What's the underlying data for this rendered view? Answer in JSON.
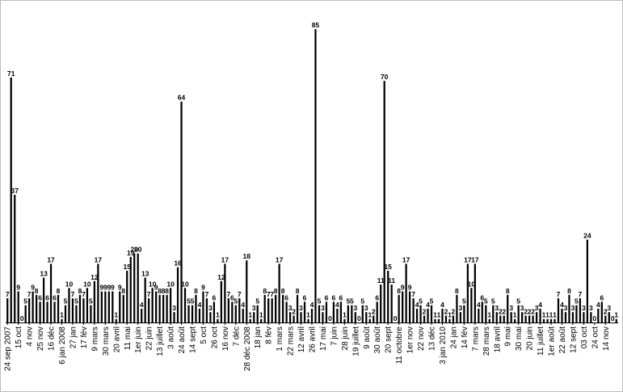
{
  "chart_data": {
    "type": "bar",
    "title": "",
    "xlabel": "",
    "ylabel": "",
    "ylim": [
      0,
      89
    ],
    "grid": false,
    "bar_color": "#000000",
    "values": [
      7,
      71,
      37,
      9,
      0,
      5,
      7,
      9,
      8,
      6,
      13,
      6,
      17,
      6,
      8,
      1,
      5,
      10,
      7,
      5,
      8,
      7,
      10,
      5,
      12,
      17,
      9,
      9,
      9,
      9,
      1,
      9,
      8,
      15,
      19,
      20,
      20,
      4,
      13,
      7,
      10,
      9,
      8,
      8,
      8,
      10,
      3,
      16,
      64,
      10,
      5,
      5,
      8,
      4,
      9,
      7,
      3,
      6,
      1,
      12,
      17,
      7,
      6,
      5,
      7,
      4,
      18,
      1,
      3,
      5,
      1,
      8,
      7,
      7,
      8,
      17,
      8,
      6,
      3,
      2,
      8,
      3,
      6,
      1,
      4,
      85,
      5,
      3,
      6,
      0,
      6,
      4,
      6,
      1,
      5,
      5,
      3,
      0,
      5,
      3,
      1,
      2,
      6,
      11,
      70,
      15,
      11,
      0,
      8,
      9,
      17,
      9,
      7,
      4,
      5,
      2,
      4,
      5,
      1,
      1,
      4,
      2,
      1,
      2,
      8,
      3,
      5,
      17,
      10,
      17,
      4,
      6,
      5,
      1,
      5,
      3,
      2,
      2,
      8,
      3,
      1,
      5,
      3,
      2,
      2,
      2,
      3,
      4,
      1,
      1,
      1,
      1,
      7,
      4,
      3,
      8,
      3,
      5,
      7,
      3,
      24,
      3,
      0,
      4,
      6,
      2,
      3,
      0,
      1
    ],
    "tick_labels": [
      {
        "label": "24 sep 2007",
        "i": 0
      },
      {
        "label": "15 oct",
        "i": 3
      },
      {
        "label": "4 nov",
        "i": 6
      },
      {
        "label": "25 nov",
        "i": 9
      },
      {
        "label": "16 déc",
        "i": 12
      },
      {
        "label": "6 jan 2008",
        "i": 15
      },
      {
        "label": "27 jan",
        "i": 18
      },
      {
        "label": "17 fév",
        "i": 21
      },
      {
        "label": "9 mars",
        "i": 24
      },
      {
        "label": "30 mars",
        "i": 27
      },
      {
        "label": "20 avril",
        "i": 30
      },
      {
        "label": "11 mai",
        "i": 33
      },
      {
        "label": "1er juin",
        "i": 36
      },
      {
        "label": "22 juin",
        "i": 39
      },
      {
        "label": "13 juillet",
        "i": 42
      },
      {
        "label": "3 août",
        "i": 45
      },
      {
        "label": "24 août",
        "i": 48
      },
      {
        "label": "14 sept",
        "i": 51
      },
      {
        "label": "5 oct",
        "i": 54
      },
      {
        "label": "26 oct",
        "i": 57
      },
      {
        "label": "16 nov",
        "i": 60
      },
      {
        "label": "7 déc",
        "i": 63
      },
      {
        "label": "28 déc 2008",
        "i": 66
      },
      {
        "label": "18 jan",
        "i": 69
      },
      {
        "label": "8 fév",
        "i": 72
      },
      {
        "label": "1 mars",
        "i": 75
      },
      {
        "label": "22 mars",
        "i": 78
      },
      {
        "label": "12 avril",
        "i": 81
      },
      {
        "label": "26 avril",
        "i": 84
      },
      {
        "label": "17 mai",
        "i": 87
      },
      {
        "label": "7 juin",
        "i": 90
      },
      {
        "label": "28 juin",
        "i": 93
      },
      {
        "label": "19 juillet",
        "i": 96
      },
      {
        "label": "9 août",
        "i": 99
      },
      {
        "label": "30 août",
        "i": 102
      },
      {
        "label": "20 sept",
        "i": 105
      },
      {
        "label": "11 octobre",
        "i": 108
      },
      {
        "label": "1er nov",
        "i": 111
      },
      {
        "label": "22 nov",
        "i": 114
      },
      {
        "label": "13 déc",
        "i": 117
      },
      {
        "label": "3 jan 2010",
        "i": 120
      },
      {
        "label": "24 jan",
        "i": 123
      },
      {
        "label": "14 fév",
        "i": 126
      },
      {
        "label": "7 mars",
        "i": 129
      },
      {
        "label": "28 mars",
        "i": 132
      },
      {
        "label": "18 avril",
        "i": 135
      },
      {
        "label": "9 mai",
        "i": 138
      },
      {
        "label": "30 mai",
        "i": 141
      },
      {
        "label": "20 juin",
        "i": 144
      },
      {
        "label": "11 juillet",
        "i": 147
      },
      {
        "label": "1er août",
        "i": 150
      },
      {
        "label": "22 août",
        "i": 153
      },
      {
        "label": "12 sept",
        "i": 156
      },
      {
        "label": "03 oct",
        "i": 159
      },
      {
        "label": "24 oct",
        "i": 162
      },
      {
        "label": "14 nov",
        "i": 165
      }
    ]
  }
}
